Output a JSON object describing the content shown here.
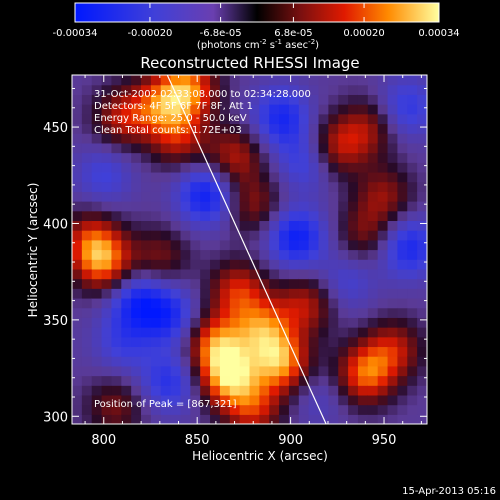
{
  "chart_data": {
    "type": "heatmap",
    "title": "Reconstructed RHESSI Image",
    "xlabel": "Heliocentric X (arcsec)",
    "ylabel": "Heliocentric Y (arcsec)",
    "xlim": [
      783,
      973
    ],
    "ylim": [
      296,
      477
    ],
    "x_ticks": [
      "800",
      "850",
      "900",
      "950"
    ],
    "x_tick_values": [
      800,
      850,
      900,
      950
    ],
    "y_ticks": [
      "300",
      "350",
      "400",
      "450"
    ],
    "y_tick_values": [
      300,
      350,
      400,
      450
    ],
    "colorbar": {
      "tick_labels": [
        "-0.00034",
        "-0.00020",
        "-6.8e-05",
        "6.8e-05",
        "0.00020",
        "0.00034"
      ],
      "tick_values": [
        -0.00034,
        -0.0002,
        -6.8e-05,
        6.8e-05,
        0.0002,
        0.00034
      ],
      "range": [
        -0.00034,
        0.00034
      ],
      "unit_prefix": "(photons cm",
      "unit_exp1": "-2",
      "unit_mid": " s",
      "unit_exp2": "-1",
      "unit_mid2": " asec",
      "unit_exp3": "-2",
      "unit_suffix": ")"
    },
    "info": {
      "time": "31-Oct-2002 02:33:08.000 to 02:34:28.000",
      "detectors": "Detectors: 4F 5F 6F 7F 8F, Att 1",
      "energy": "Energy Range: 25.0 - 50.0 keV",
      "clean": "Clean    Total counts: 1.72E+03"
    },
    "peak_label": "Position of Peak = [867,321]",
    "peak": [
      867,
      321
    ],
    "limb_line": [
      [
        834,
        477
      ],
      [
        919,
        296
      ]
    ],
    "blobs": [
      {
        "x": 867,
        "y": 321,
        "v": 1.0
      },
      {
        "x": 860,
        "y": 338,
        "v": 0.8
      },
      {
        "x": 895,
        "y": 328,
        "v": 0.9
      },
      {
        "x": 885,
        "y": 345,
        "v": 0.75
      },
      {
        "x": 872,
        "y": 365,
        "v": 0.65
      },
      {
        "x": 908,
        "y": 358,
        "v": 0.55
      },
      {
        "x": 940,
        "y": 322,
        "v": 0.8
      },
      {
        "x": 955,
        "y": 335,
        "v": 0.55
      },
      {
        "x": 880,
        "y": 304,
        "v": 0.6
      },
      {
        "x": 845,
        "y": 470,
        "v": 0.85
      },
      {
        "x": 830,
        "y": 462,
        "v": 0.6
      },
      {
        "x": 810,
        "y": 455,
        "v": 0.55
      },
      {
        "x": 840,
        "y": 445,
        "v": 0.55
      },
      {
        "x": 870,
        "y": 435,
        "v": 0.55
      },
      {
        "x": 880,
        "y": 410,
        "v": 0.45
      },
      {
        "x": 800,
        "y": 380,
        "v": 0.8
      },
      {
        "x": 793,
        "y": 392,
        "v": 0.55
      },
      {
        "x": 830,
        "y": 383,
        "v": 0.4
      },
      {
        "x": 925,
        "y": 440,
        "v": 0.55
      },
      {
        "x": 942,
        "y": 450,
        "v": 0.45
      },
      {
        "x": 950,
        "y": 415,
        "v": 0.45
      },
      {
        "x": 940,
        "y": 395,
        "v": 0.4
      },
      {
        "x": 806,
        "y": 305,
        "v": 0.4
      },
      {
        "x": 835,
        "y": 352,
        "v": -0.55
      },
      {
        "x": 818,
        "y": 360,
        "v": -0.6
      },
      {
        "x": 855,
        "y": 415,
        "v": -0.7
      },
      {
        "x": 895,
        "y": 455,
        "v": -0.6
      },
      {
        "x": 903,
        "y": 393,
        "v": -0.7
      },
      {
        "x": 963,
        "y": 388,
        "v": -0.6
      },
      {
        "x": 962,
        "y": 460,
        "v": -0.45
      },
      {
        "x": 908,
        "y": 432,
        "v": -0.4
      },
      {
        "x": 800,
        "y": 425,
        "v": -0.35
      },
      {
        "x": 835,
        "y": 318,
        "v": -0.5
      },
      {
        "x": 810,
        "y": 338,
        "v": -0.35
      },
      {
        "x": 930,
        "y": 370,
        "v": -0.3
      },
      {
        "x": 915,
        "y": 310,
        "v": -0.2
      }
    ]
  },
  "footer": {
    "timestamp": "15-Apr-2013 05:16"
  }
}
